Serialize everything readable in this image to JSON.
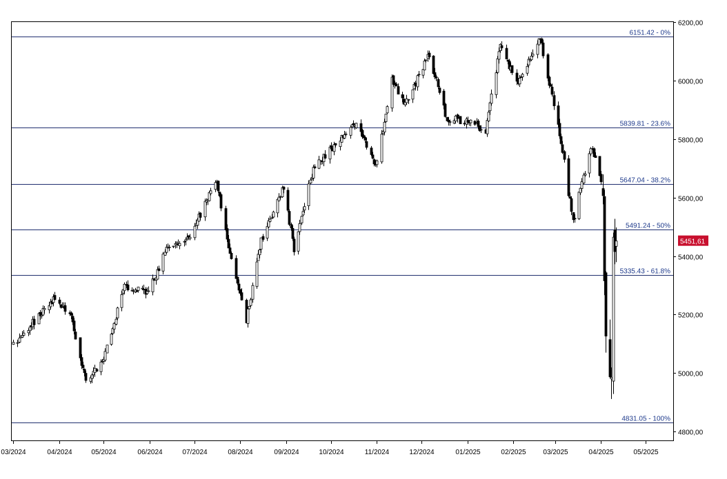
{
  "chart_data": {
    "type": "candlestick",
    "title": "",
    "xlabel": "",
    "ylabel": "",
    "ylim": [
      4770,
      6200
    ],
    "grid": false,
    "colors": {
      "up_body": "#ffffff",
      "down_body": "#000000",
      "candle_outline": "#000000",
      "fib_line": "#1f2e6e",
      "fib_label": "#1f3b8c",
      "price_badge": "#c8102e",
      "price_badge_text": "#ffffff",
      "axis": "#000000"
    },
    "y_ticks": [
      "4800,00",
      "5000,00",
      "5200,00",
      "5400,00",
      "5600,00",
      "5800,00",
      "6000,00",
      "6200,00"
    ],
    "y_tick_values": [
      4800,
      5000,
      5200,
      5400,
      5600,
      5800,
      6000,
      6200
    ],
    "x_ticks": [
      "03/2024",
      "04/2024",
      "05/2024",
      "06/2024",
      "07/2024",
      "08/2024",
      "09/2024",
      "10/2024",
      "11/2024",
      "12/2024",
      "01/2025",
      "02/2025",
      "03/2025",
      "04/2025",
      "05/2025"
    ],
    "fib_levels": [
      {
        "value": 6151.42,
        "label": "6151.42 - 0%"
      },
      {
        "value": 5839.81,
        "label": "5839.81 - 23.6%"
      },
      {
        "value": 5647.04,
        "label": "5647.04 - 38.2%"
      },
      {
        "value": 5491.24,
        "label": "5491.24 - 50%"
      },
      {
        "value": 5335.43,
        "label": "5335.43 - 61.8%"
      },
      {
        "value": 4831.05,
        "label": "4831.05 - 100%"
      }
    ],
    "last_price": {
      "value": 5451.61,
      "label": "5451,61"
    },
    "series_waypoints": [
      {
        "date": "2024-03-01",
        "close": 5100
      },
      {
        "date": "2024-03-12",
        "close": 5160
      },
      {
        "date": "2024-03-28",
        "close": 5250
      },
      {
        "date": "2024-04-08",
        "close": 5210
      },
      {
        "date": "2024-04-19",
        "close": 4970
      },
      {
        "date": "2024-04-30",
        "close": 5040
      },
      {
        "date": "2024-05-15",
        "close": 5300
      },
      {
        "date": "2024-05-31",
        "close": 5280
      },
      {
        "date": "2024-06-12",
        "close": 5420
      },
      {
        "date": "2024-06-28",
        "close": 5470
      },
      {
        "date": "2024-07-16",
        "close": 5660
      },
      {
        "date": "2024-07-25",
        "close": 5400
      },
      {
        "date": "2024-08-05",
        "close": 5180
      },
      {
        "date": "2024-08-15",
        "close": 5450
      },
      {
        "date": "2024-08-30",
        "close": 5640
      },
      {
        "date": "2024-09-06",
        "close": 5420
      },
      {
        "date": "2024-09-19",
        "close": 5700
      },
      {
        "date": "2024-10-18",
        "close": 5860
      },
      {
        "date": "2024-10-31",
        "close": 5700
      },
      {
        "date": "2024-11-11",
        "close": 6000
      },
      {
        "date": "2024-11-20",
        "close": 5920
      },
      {
        "date": "2024-12-06",
        "close": 6090
      },
      {
        "date": "2024-12-18",
        "close": 5870
      },
      {
        "date": "2025-01-02",
        "close": 5860
      },
      {
        "date": "2025-01-13",
        "close": 5830
      },
      {
        "date": "2025-01-23",
        "close": 6120
      },
      {
        "date": "2025-02-03",
        "close": 5990
      },
      {
        "date": "2025-02-19",
        "close": 6140
      },
      {
        "date": "2025-03-03",
        "close": 5850
      },
      {
        "date": "2025-03-13",
        "close": 5520
      },
      {
        "date": "2025-03-25",
        "close": 5780
      },
      {
        "date": "2025-04-02",
        "close": 5650
      },
      {
        "date": "2025-04-04",
        "close": 5080
      },
      {
        "date": "2025-04-08",
        "close": 4980
      },
      {
        "date": "2025-04-09",
        "close": 5460
      },
      {
        "date": "2025-04-11",
        "close": 5451.61
      }
    ]
  }
}
